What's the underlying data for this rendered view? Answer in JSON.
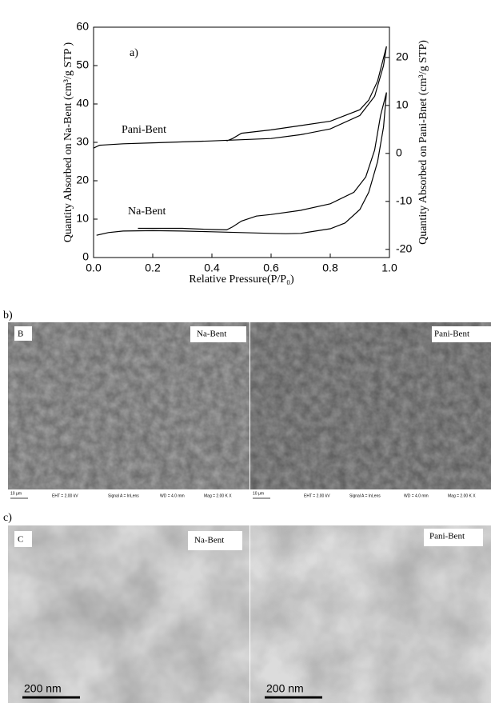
{
  "chart_data": {
    "type": "line",
    "panel_label": "a)",
    "xlabel": "Relative Pressure(P/P₀)",
    "ylabel": "Quantity Absorbed on Na-Bent (cm³/g STP )",
    "y2label": "Quantity Absorbed on Pani-Bnet (cm³/g STP)",
    "xlim": [
      0,
      1
    ],
    "xticks": [
      {
        "value": 0,
        "label": "0.0"
      },
      {
        "value": 0.2,
        "label": "0.2"
      },
      {
        "value": 0.4,
        "label": "0.4"
      },
      {
        "value": 0.6,
        "label": "0.6"
      },
      {
        "value": 0.8,
        "label": "0.8"
      },
      {
        "value": 1,
        "label": "1.0"
      }
    ],
    "ylim": [
      0,
      60
    ],
    "yticks": [
      0,
      10,
      20,
      30,
      40,
      50,
      60
    ],
    "y2lim": [
      -21.7,
      26.3
    ],
    "y2ticks": [
      -20,
      -10,
      0,
      10,
      20
    ],
    "series": [
      {
        "name": "Na-Bent",
        "color": "#000000",
        "x": [
          0.01,
          0.05,
          0.1,
          0.2,
          0.3,
          0.4,
          0.5,
          0.6,
          0.65,
          0.7,
          0.8,
          0.85,
          0.9,
          0.93,
          0.96,
          0.98,
          0.99,
          0.97,
          0.95,
          0.92,
          0.88,
          0.8,
          0.7,
          0.6,
          0.55,
          0.5,
          0.47,
          0.45,
          0.4,
          0.3,
          0.2,
          0.15
        ],
        "values": [
          5.8,
          6.5,
          6.9,
          7.0,
          6.9,
          6.7,
          6.5,
          6.3,
          6.2,
          6.3,
          7.5,
          9,
          12.5,
          17,
          25,
          34,
          43,
          37,
          28,
          21,
          17,
          14,
          12.3,
          11.2,
          10.8,
          9.5,
          8,
          7.2,
          7.3,
          7.6,
          7.6,
          7.6
        ]
      },
      {
        "name": "Pani-Bent",
        "color": "#000000",
        "axis": "y2",
        "x": [
          0,
          0.02,
          0.1,
          0.2,
          0.4,
          0.6,
          0.7,
          0.8,
          0.9,
          0.95,
          0.98,
          0.99,
          0.96,
          0.93,
          0.9,
          0.8,
          0.7,
          0.6,
          0.5,
          0.47,
          0.45
        ],
        "values": [
          1.1,
          1.7,
          2.0,
          2.2,
          2.6,
          3.1,
          3.9,
          5.1,
          7.9,
          11.9,
          18.3,
          22.3,
          15.1,
          11.1,
          9.1,
          6.7,
          5.8,
          4.9,
          4.2,
          3.1,
          2.6
        ]
      }
    ]
  },
  "panel_b": {
    "label": "b)",
    "letter": "B",
    "left_title": "Na-Bent",
    "right_title": "Pani-Bent",
    "info": [
      "10 μm",
      "EHT = 2.00 kV",
      "Signal A = InLens",
      "WD = 4.0 mm",
      "Mag = 2.00 K X"
    ]
  },
  "panel_c": {
    "label": "c)",
    "letter": "C",
    "left_title": "Na-Bent",
    "right_title": "Pani-Bent",
    "scale": "200 nm"
  }
}
